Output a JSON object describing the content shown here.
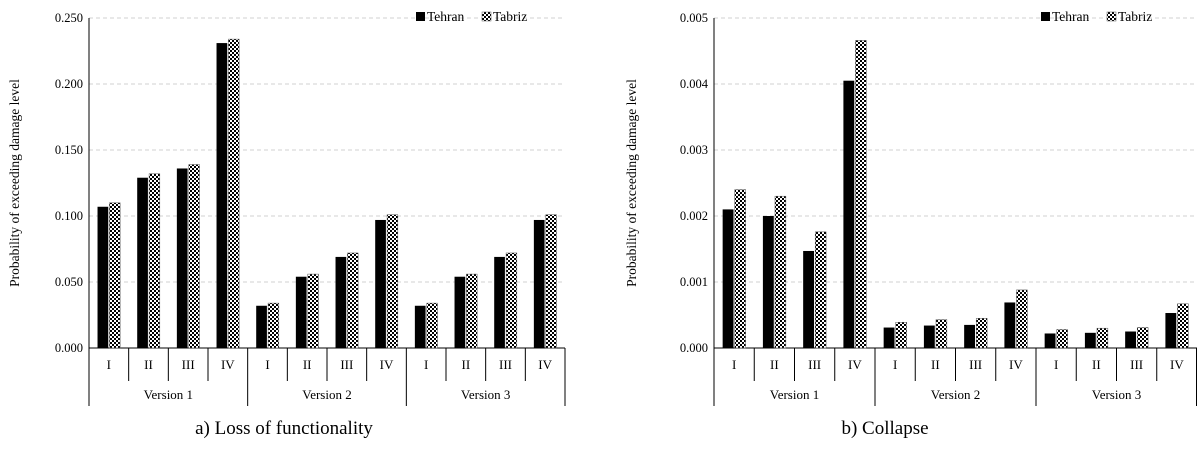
{
  "colors": {
    "tehran": "#000000",
    "tabriz_base": "#ffffff",
    "tabriz_pattern": "#000000",
    "grid": "#d0d0d0",
    "axis": "#000000"
  },
  "chart_data": [
    {
      "type": "bar",
      "caption": "a) Loss of functionality",
      "ylabel": "Probability of exceeding damage level",
      "xlabel": "",
      "ylim": [
        0,
        0.25
      ],
      "yticks": [
        0,
        0.05,
        0.1,
        0.15,
        0.2,
        0.25
      ],
      "ytick_labels": [
        "0.000",
        "0.050",
        "0.100",
        "0.150",
        "0.200",
        "0.250"
      ],
      "grid": "horizontal dashed",
      "legend_position": "top-right",
      "groups": [
        {
          "label": "Version 1",
          "categories": [
            "I",
            "II",
            "III",
            "IV"
          ]
        },
        {
          "label": "Version 2",
          "categories": [
            "I",
            "II",
            "III",
            "IV"
          ]
        },
        {
          "label": "Version 3",
          "categories": [
            "I",
            "II",
            "III",
            "IV"
          ]
        }
      ],
      "series": [
        {
          "name": "Tehran",
          "style": "solid",
          "values": [
            0.107,
            0.129,
            0.136,
            0.231,
            0.032,
            0.054,
            0.069,
            0.097,
            0.032,
            0.054,
            0.069,
            0.097
          ]
        },
        {
          "name": "Tabriz",
          "style": "checker",
          "values": [
            0.11,
            0.132,
            0.139,
            0.234,
            0.034,
            0.056,
            0.072,
            0.101,
            0.034,
            0.056,
            0.072,
            0.101
          ]
        }
      ]
    },
    {
      "type": "bar",
      "caption": "b) Collapse",
      "ylabel": "Probability of exceeding damage level",
      "xlabel": "",
      "ylim": [
        0,
        0.005
      ],
      "yticks": [
        0,
        0.001,
        0.002,
        0.003,
        0.004,
        0.005
      ],
      "ytick_labels": [
        "0.000",
        "0.001",
        "0.002",
        "0.003",
        "0.004",
        "0.005"
      ],
      "grid": "horizontal dashed",
      "legend_position": "top-right",
      "groups": [
        {
          "label": "Version 1",
          "categories": [
            "I",
            "II",
            "III",
            "IV"
          ]
        },
        {
          "label": "Version 2",
          "categories": [
            "I",
            "II",
            "III",
            "IV"
          ]
        },
        {
          "label": "Version 3",
          "categories": [
            "I",
            "II",
            "III",
            "IV"
          ]
        }
      ],
      "series": [
        {
          "name": "Tehran",
          "style": "solid",
          "values": [
            0.0021,
            0.002,
            0.00147,
            0.00405,
            0.00031,
            0.00034,
            0.00035,
            0.00069,
            0.00022,
            0.00023,
            0.00025,
            0.00053
          ]
        },
        {
          "name": "Tabriz",
          "style": "checker",
          "values": [
            0.0024,
            0.0023,
            0.00176,
            0.00466,
            0.00039,
            0.00043,
            0.00045,
            0.00088,
            0.00028,
            0.0003,
            0.00031,
            0.00067
          ]
        }
      ]
    }
  ]
}
